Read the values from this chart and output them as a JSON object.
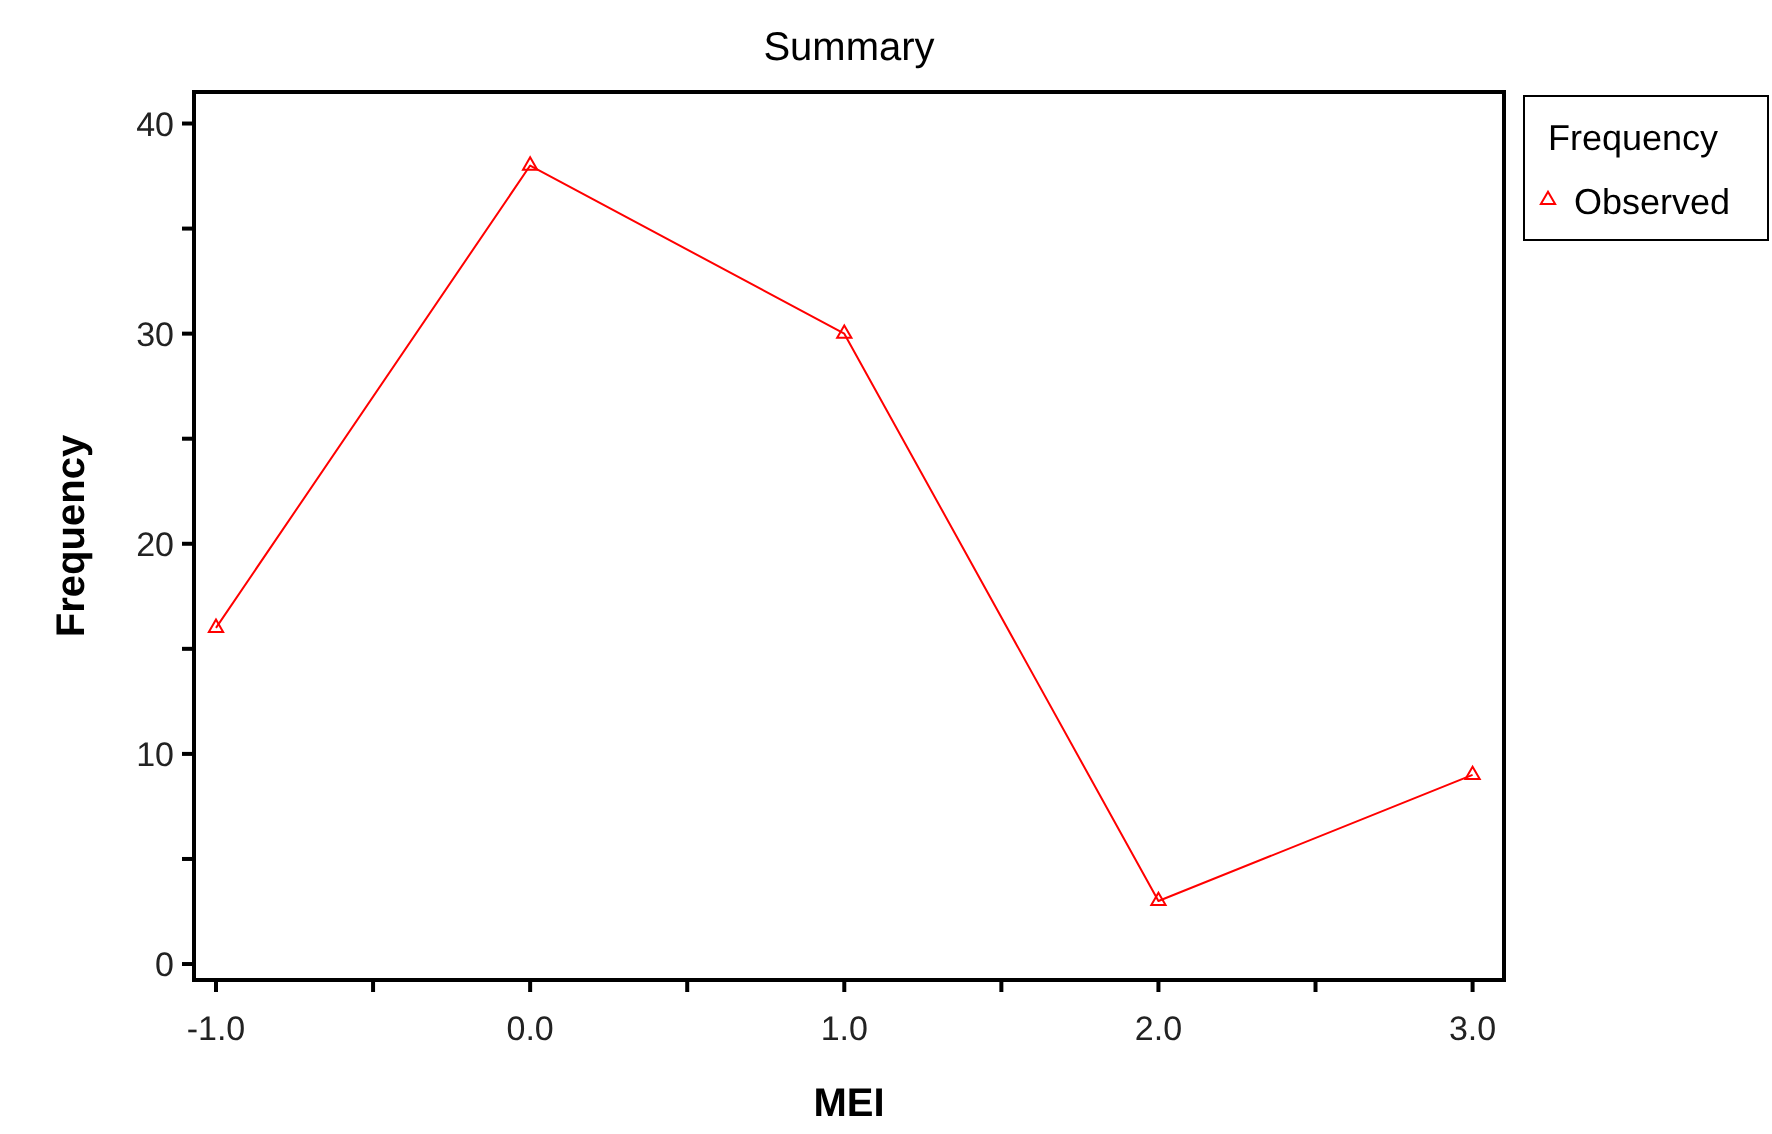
{
  "chart_data": {
    "type": "line",
    "title": "Summary",
    "xlabel": "MEI",
    "ylabel": "Frequency",
    "legend_title": "Frequency",
    "legend": "top right",
    "marker": "triangle",
    "line_style": "solid",
    "x": [
      -1,
      0,
      1,
      2,
      3
    ],
    "series": [
      {
        "name": "Observed",
        "color": "#ff0000",
        "values": [
          16,
          38,
          30,
          3,
          9
        ]
      }
    ],
    "xlim": [
      -1.07,
      3.1
    ],
    "ylim": [
      -0.76,
      41.5
    ],
    "xticks": [
      {
        "value": -1,
        "label": "-1.0"
      },
      {
        "value": -0.5,
        "label": null
      },
      {
        "value": 0,
        "label": "0.0"
      },
      {
        "value": 0.5,
        "label": null
      },
      {
        "value": 1,
        "label": "1.0"
      },
      {
        "value": 1.5,
        "label": null
      },
      {
        "value": 2,
        "label": "2.0"
      },
      {
        "value": 2.5,
        "label": null
      },
      {
        "value": 3,
        "label": "3.0"
      }
    ],
    "yticks": [
      0,
      {
        "value": 5,
        "label": null
      },
      10,
      {
        "value": 15,
        "label": null
      },
      20,
      {
        "value": 25,
        "label": null
      },
      30,
      {
        "value": 35,
        "label": null
      },
      40
    ],
    "grid": false
  }
}
